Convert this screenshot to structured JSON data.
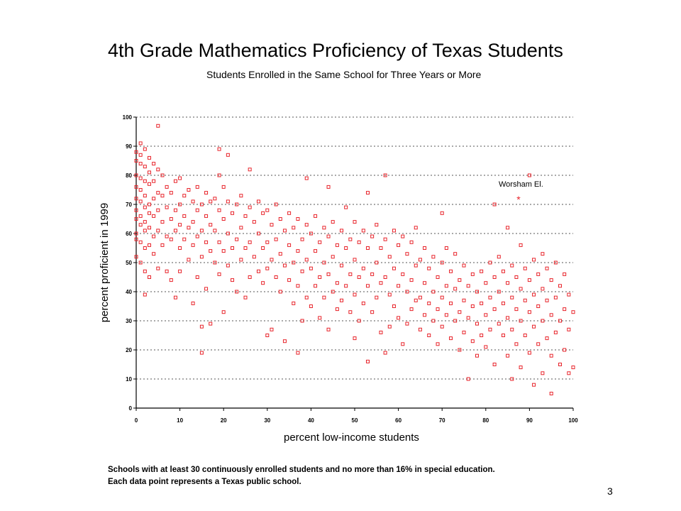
{
  "slide": {
    "title": "4th Grade Mathematics Proficiency of Texas Students",
    "subtitle": "Students Enrolled in the Same School for Three Years or More",
    "notes": [
      "Schools with at least 30 continuously enrolled students and no more than 16% in special education.",
      "Each data point represents a Texas public school."
    ],
    "page_number": "3"
  },
  "chart_data": {
    "type": "scatter",
    "title": "4th Grade Mathematics Proficiency of Texas Students",
    "subtitle": "Students Enrolled in the Same School for Three Years or More",
    "xlabel": "percent low-income students",
    "ylabel": "percent proficient in 1999",
    "xlim": [
      0,
      100
    ],
    "ylim": [
      0,
      100
    ],
    "xticks": [
      "0",
      "10",
      "20",
      "30",
      "40",
      "50",
      "60",
      "70",
      "80",
      "90",
      "100"
    ],
    "yticks": [
      "0",
      "10",
      "20",
      "30",
      "40",
      "50",
      "60",
      "70",
      "80",
      "90",
      "100"
    ],
    "grid": "horizontal-dotted",
    "marker_color": "#e8232a",
    "marker": "open-square",
    "annotation": {
      "text": "Worsham El.",
      "x": 87.5,
      "y": 72
    },
    "points": [
      [
        0,
        88
      ],
      [
        0,
        85
      ],
      [
        0,
        80
      ],
      [
        0,
        76
      ],
      [
        0,
        72
      ],
      [
        0,
        68
      ],
      [
        0,
        65
      ],
      [
        0,
        60
      ],
      [
        0,
        58
      ],
      [
        0,
        52
      ],
      [
        1,
        91
      ],
      [
        1,
        87
      ],
      [
        1,
        84
      ],
      [
        1,
        79
      ],
      [
        1,
        75
      ],
      [
        1,
        71
      ],
      [
        1,
        66
      ],
      [
        1,
        63
      ],
      [
        1,
        57
      ],
      [
        1,
        50
      ],
      [
        2,
        89
      ],
      [
        2,
        83
      ],
      [
        2,
        78
      ],
      [
        2,
        73
      ],
      [
        2,
        69
      ],
      [
        2,
        64
      ],
      [
        2,
        61
      ],
      [
        2,
        55
      ],
      [
        2,
        47
      ],
      [
        2,
        39
      ],
      [
        3,
        86
      ],
      [
        3,
        81
      ],
      [
        3,
        77
      ],
      [
        3,
        70
      ],
      [
        3,
        67
      ],
      [
        3,
        62
      ],
      [
        3,
        56
      ],
      [
        3,
        45
      ],
      [
        4,
        84
      ],
      [
        4,
        78
      ],
      [
        4,
        72
      ],
      [
        4,
        66
      ],
      [
        4,
        59
      ],
      [
        4,
        53
      ],
      [
        5,
        97
      ],
      [
        5,
        82
      ],
      [
        5,
        74
      ],
      [
        5,
        68
      ],
      [
        5,
        61
      ],
      [
        5,
        48
      ],
      [
        6,
        80
      ],
      [
        6,
        73
      ],
      [
        6,
        64
      ],
      [
        6,
        56
      ],
      [
        7,
        76
      ],
      [
        7,
        69
      ],
      [
        7,
        59
      ],
      [
        7,
        47
      ],
      [
        8,
        74
      ],
      [
        8,
        65
      ],
      [
        8,
        58
      ],
      [
        8,
        44
      ],
      [
        9,
        78
      ],
      [
        9,
        68
      ],
      [
        9,
        61
      ],
      [
        9,
        38
      ],
      [
        10,
        79
      ],
      [
        10,
        70
      ],
      [
        10,
        63
      ],
      [
        10,
        55
      ],
      [
        10,
        47
      ],
      [
        11,
        73
      ],
      [
        11,
        66
      ],
      [
        11,
        58
      ],
      [
        12,
        75
      ],
      [
        12,
        62
      ],
      [
        12,
        51
      ],
      [
        13,
        71
      ],
      [
        13,
        64
      ],
      [
        13,
        56
      ],
      [
        13,
        36
      ],
      [
        14,
        76
      ],
      [
        14,
        68
      ],
      [
        14,
        59
      ],
      [
        14,
        45
      ],
      [
        15,
        70
      ],
      [
        15,
        61
      ],
      [
        15,
        52
      ],
      [
        15,
        28
      ],
      [
        15,
        19
      ],
      [
        16,
        74
      ],
      [
        16,
        66
      ],
      [
        16,
        57
      ],
      [
        16,
        41
      ],
      [
        17,
        71
      ],
      [
        17,
        63
      ],
      [
        17,
        54
      ],
      [
        17,
        29
      ],
      [
        18,
        72
      ],
      [
        18,
        61
      ],
      [
        18,
        50
      ],
      [
        19,
        89
      ],
      [
        19,
        80
      ],
      [
        19,
        68
      ],
      [
        19,
        57
      ],
      [
        19,
        46
      ],
      [
        20,
        76
      ],
      [
        20,
        65
      ],
      [
        20,
        54
      ],
      [
        20,
        33
      ],
      [
        21,
        87
      ],
      [
        21,
        71
      ],
      [
        21,
        60
      ],
      [
        21,
        49
      ],
      [
        22,
        67
      ],
      [
        22,
        55
      ],
      [
        22,
        44
      ],
      [
        23,
        70
      ],
      [
        23,
        58
      ],
      [
        23,
        40
      ],
      [
        24,
        73
      ],
      [
        24,
        62
      ],
      [
        24,
        51
      ],
      [
        25,
        66
      ],
      [
        25,
        55
      ],
      [
        25,
        38
      ],
      [
        26,
        82
      ],
      [
        26,
        69
      ],
      [
        26,
        57
      ],
      [
        26,
        45
      ],
      [
        27,
        64
      ],
      [
        27,
        52
      ],
      [
        28,
        71
      ],
      [
        28,
        60
      ],
      [
        28,
        47
      ],
      [
        29,
        67
      ],
      [
        29,
        55
      ],
      [
        29,
        43
      ],
      [
        30,
        68
      ],
      [
        30,
        57
      ],
      [
        30,
        48
      ],
      [
        30,
        25
      ],
      [
        31,
        63
      ],
      [
        31,
        51
      ],
      [
        31,
        27
      ],
      [
        32,
        70
      ],
      [
        32,
        58
      ],
      [
        32,
        45
      ],
      [
        33,
        65
      ],
      [
        33,
        53
      ],
      [
        33,
        40
      ],
      [
        34,
        61
      ],
      [
        34,
        49
      ],
      [
        34,
        23
      ],
      [
        35,
        67
      ],
      [
        35,
        56
      ],
      [
        35,
        44
      ],
      [
        36,
        62
      ],
      [
        36,
        50
      ],
      [
        36,
        36
      ],
      [
        37,
        65
      ],
      [
        37,
        54
      ],
      [
        37,
        42
      ],
      [
        37,
        19
      ],
      [
        38,
        58
      ],
      [
        38,
        47
      ],
      [
        38,
        30
      ],
      [
        39,
        79
      ],
      [
        39,
        63
      ],
      [
        39,
        51
      ],
      [
        39,
        38
      ],
      [
        40,
        60
      ],
      [
        40,
        48
      ],
      [
        40,
        35
      ],
      [
        41,
        66
      ],
      [
        41,
        54
      ],
      [
        41,
        42
      ],
      [
        42,
        57
      ],
      [
        42,
        45
      ],
      [
        42,
        31
      ],
      [
        43,
        62
      ],
      [
        43,
        50
      ],
      [
        43,
        38
      ],
      [
        44,
        76
      ],
      [
        44,
        59
      ],
      [
        44,
        46
      ],
      [
        44,
        27
      ],
      [
        45,
        64
      ],
      [
        45,
        52
      ],
      [
        45,
        40
      ],
      [
        46,
        56
      ],
      [
        46,
        43
      ],
      [
        46,
        34
      ],
      [
        47,
        61
      ],
      [
        47,
        49
      ],
      [
        47,
        37
      ],
      [
        48,
        69
      ],
      [
        48,
        55
      ],
      [
        48,
        42
      ],
      [
        49,
        58
      ],
      [
        49,
        46
      ],
      [
        49,
        33
      ],
      [
        50,
        64
      ],
      [
        50,
        51
      ],
      [
        50,
        39
      ],
      [
        50,
        24
      ],
      [
        51,
        57
      ],
      [
        51,
        45
      ],
      [
        51,
        30
      ],
      [
        52,
        61
      ],
      [
        52,
        48
      ],
      [
        52,
        36
      ],
      [
        53,
        74
      ],
      [
        53,
        55
      ],
      [
        53,
        42
      ],
      [
        53,
        16
      ],
      [
        54,
        59
      ],
      [
        54,
        46
      ],
      [
        54,
        33
      ],
      [
        55,
        63
      ],
      [
        55,
        50
      ],
      [
        55,
        38
      ],
      [
        56,
        55
      ],
      [
        56,
        43
      ],
      [
        56,
        26
      ],
      [
        57,
        80
      ],
      [
        57,
        58
      ],
      [
        57,
        45
      ],
      [
        57,
        19
      ],
      [
        58,
        52
      ],
      [
        58,
        39
      ],
      [
        58,
        28
      ],
      [
        59,
        61
      ],
      [
        59,
        48
      ],
      [
        59,
        35
      ],
      [
        60,
        56
      ],
      [
        60,
        42
      ],
      [
        60,
        31
      ],
      [
        61,
        59
      ],
      [
        61,
        46
      ],
      [
        61,
        22
      ],
      [
        62,
        53
      ],
      [
        62,
        40
      ],
      [
        62,
        29
      ],
      [
        63,
        57
      ],
      [
        63,
        44
      ],
      [
        63,
        34
      ],
      [
        64,
        62
      ],
      [
        64,
        49
      ],
      [
        64,
        37
      ],
      [
        65,
        51
      ],
      [
        65,
        38
      ],
      [
        65,
        27
      ],
      [
        66,
        55
      ],
      [
        66,
        43
      ],
      [
        66,
        32
      ],
      [
        67,
        48
      ],
      [
        67,
        36
      ],
      [
        67,
        25
      ],
      [
        68,
        52
      ],
      [
        68,
        40
      ],
      [
        68,
        30
      ],
      [
        69,
        45
      ],
      [
        69,
        34
      ],
      [
        69,
        22
      ],
      [
        70,
        67
      ],
      [
        70,
        50
      ],
      [
        70,
        38
      ],
      [
        70,
        28
      ],
      [
        71,
        55
      ],
      [
        71,
        42
      ],
      [
        71,
        32
      ],
      [
        72,
        47
      ],
      [
        72,
        36
      ],
      [
        72,
        24
      ],
      [
        73,
        53
      ],
      [
        73,
        41
      ],
      [
        73,
        30
      ],
      [
        74,
        44
      ],
      [
        74,
        33
      ],
      [
        74,
        20
      ],
      [
        75,
        49
      ],
      [
        75,
        37
      ],
      [
        75,
        26
      ],
      [
        76,
        42
      ],
      [
        76,
        31
      ],
      [
        76,
        10
      ],
      [
        77,
        46
      ],
      [
        77,
        35
      ],
      [
        77,
        23
      ],
      [
        78,
        40
      ],
      [
        78,
        29
      ],
      [
        78,
        18
      ],
      [
        79,
        47
      ],
      [
        79,
        36
      ],
      [
        79,
        25
      ],
      [
        80,
        43
      ],
      [
        80,
        32
      ],
      [
        80,
        21
      ],
      [
        81,
        50
      ],
      [
        81,
        38
      ],
      [
        81,
        27
      ],
      [
        82,
        70
      ],
      [
        82,
        45
      ],
      [
        82,
        34
      ],
      [
        82,
        15
      ],
      [
        83,
        52
      ],
      [
        83,
        40
      ],
      [
        83,
        29
      ],
      [
        84,
        47
      ],
      [
        84,
        36
      ],
      [
        84,
        25
      ],
      [
        85,
        62
      ],
      [
        85,
        43
      ],
      [
        85,
        31
      ],
      [
        85,
        18
      ],
      [
        86,
        49
      ],
      [
        86,
        38
      ],
      [
        86,
        27
      ],
      [
        86,
        10
      ],
      [
        87,
        45
      ],
      [
        87,
        34
      ],
      [
        87,
        22
      ],
      [
        88,
        56
      ],
      [
        88,
        41
      ],
      [
        88,
        30
      ],
      [
        88,
        14
      ],
      [
        89,
        48
      ],
      [
        89,
        37
      ],
      [
        89,
        25
      ],
      [
        90,
        80
      ],
      [
        90,
        44
      ],
      [
        90,
        33
      ],
      [
        90,
        19
      ],
      [
        91,
        51
      ],
      [
        91,
        39
      ],
      [
        91,
        28
      ],
      [
        91,
        8
      ],
      [
        92,
        46
      ],
      [
        92,
        35
      ],
      [
        92,
        22
      ],
      [
        93,
        53
      ],
      [
        93,
        41
      ],
      [
        93,
        30
      ],
      [
        93,
        12
      ],
      [
        94,
        48
      ],
      [
        94,
        37
      ],
      [
        94,
        24
      ],
      [
        95,
        44
      ],
      [
        95,
        32
      ],
      [
        95,
        18
      ],
      [
        95,
        5
      ],
      [
        96,
        50
      ],
      [
        96,
        38
      ],
      [
        96,
        26
      ],
      [
        97,
        42
      ],
      [
        97,
        30
      ],
      [
        97,
        15
      ],
      [
        98,
        46
      ],
      [
        98,
        34
      ],
      [
        98,
        20
      ],
      [
        99,
        39
      ],
      [
        99,
        27
      ],
      [
        99,
        12
      ],
      [
        100,
        33
      ],
      [
        100,
        14
      ]
    ]
  }
}
